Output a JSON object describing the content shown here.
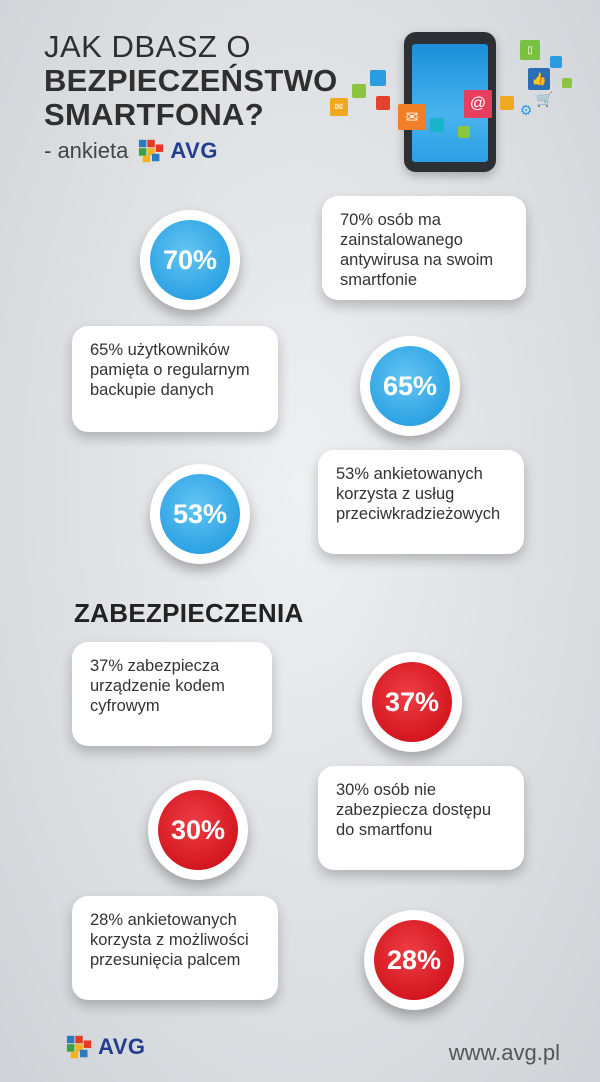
{
  "header": {
    "line1": "JAK DBASZ O",
    "line2": "BEZPIECZEŃSTWO",
    "line3": "SMARTFONA?",
    "subtitle": "- ankieta",
    "brand": "AVG"
  },
  "colors": {
    "blue": "#2ea3e4",
    "red": "#d2141d",
    "brand_blue": "#233e8f"
  },
  "stats": [
    {
      "value": "70%",
      "text": "70% osób ma zainstalowanego antywirusa na swoim smartfonie",
      "color": "blue"
    },
    {
      "value": "65%",
      "text": "65% użytkowników pamięta o regularnym backupie danych",
      "color": "blue"
    },
    {
      "value": "53%",
      "text": "53% ankietowanych korzysta z usług przeciwkradzieżowych",
      "color": "blue"
    }
  ],
  "security": {
    "title": "ZABEZPIECZENIA",
    "items": [
      {
        "value": "37%",
        "text": "37% zabezpiecza urządzenie kodem cyfrowym",
        "color": "red"
      },
      {
        "value": "30%",
        "text": "30% osób nie zabezpiecza dostępu do smartfonu",
        "color": "red"
      },
      {
        "value": "28%",
        "text": "28% ankietowanych korzysta z możliwości przesunięcia palcem",
        "color": "red"
      }
    ]
  },
  "footer": {
    "brand": "AVG",
    "url": "www.avg.pl"
  },
  "icons": [
    "smartphone-icon",
    "mail-icon",
    "at-icon",
    "like-icon",
    "cart-icon",
    "photo-icon",
    "avg-logo-icon"
  ]
}
